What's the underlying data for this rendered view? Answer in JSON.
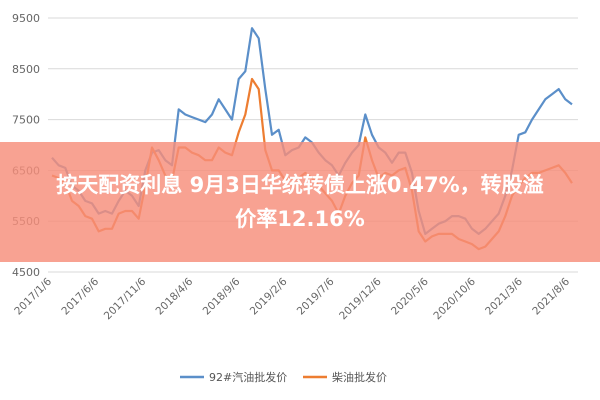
{
  "headline": {
    "line1": "按天配资利息 9月3日华统转债上涨0.47%，转股溢",
    "line2": "价率12.16%"
  },
  "colors": {
    "series_blue": "#5b8fc9",
    "series_orange": "#ed7d31",
    "grid": "#d9d9d9",
    "banner": "#f78e7a"
  },
  "chart_data": {
    "type": "line",
    "title": "",
    "xlabel": "",
    "ylabel": "",
    "ylim": [
      4500,
      9500
    ],
    "yticks": [
      "9500",
      "8500",
      "7500",
      "6500",
      "5500",
      "4500"
    ],
    "ytick_values": [
      9500,
      8500,
      7500,
      6500,
      5500,
      4500
    ],
    "xticks": [
      "2017/1/6",
      "2017/6/6",
      "2017/11/6",
      "2018/4/6",
      "2018/9/6",
      "2019/2/6",
      "2019/7/6",
      "2019/12/6",
      "2020/5/6",
      "2020/10/6",
      "2021/3/6",
      "2021/8/6"
    ],
    "grid": true,
    "legend_position": "bottom",
    "series": [
      {
        "name": "92#汽油批发价",
        "color": "#5b8fc9",
        "values": [
          6750,
          6600,
          6550,
          6200,
          6100,
          5900,
          5850,
          5650,
          5700,
          5650,
          5900,
          6100,
          6000,
          5800,
          6500,
          6850,
          6900,
          6700,
          6600,
          7700,
          7600,
          7550,
          7500,
          7450,
          7600,
          7900,
          7700,
          7500,
          8300,
          8450,
          9300,
          9100,
          8100,
          7200,
          7300,
          6800,
          6900,
          6950,
          7150,
          7050,
          6850,
          6700,
          6600,
          6400,
          6650,
          6850,
          7000,
          7600,
          7200,
          6950,
          6850,
          6650,
          6850,
          6850,
          6450,
          5700,
          5250,
          5350,
          5450,
          5500,
          5600,
          5600,
          5550,
          5350,
          5250,
          5350,
          5500,
          5650,
          6000,
          6500,
          7200,
          7250,
          7500,
          7700,
          7900,
          8000,
          8100,
          7900,
          7800
        ]
      },
      {
        "name": "柴油批发价",
        "color": "#ed7d31",
        "values": [
          6400,
          6350,
          6250,
          5900,
          5800,
          5600,
          5550,
          5300,
          5350,
          5350,
          5650,
          5700,
          5700,
          5550,
          6200,
          6950,
          6700,
          6400,
          6300,
          6950,
          6950,
          6850,
          6800,
          6700,
          6700,
          6950,
          6850,
          6800,
          7250,
          7600,
          8300,
          8100,
          6900,
          6500,
          6500,
          6300,
          6350,
          6350,
          6450,
          6350,
          6200,
          6050,
          5900,
          5650,
          6000,
          6250,
          6400,
          7150,
          6700,
          6350,
          6450,
          6400,
          6500,
          6550,
          6100,
          5300,
          5100,
          5200,
          5250,
          5250,
          5250,
          5150,
          5100,
          5050,
          4950,
          5000,
          5150,
          5300,
          5600,
          6000,
          6200,
          6350,
          6450,
          6450,
          6500,
          6550,
          6600,
          6450,
          6250
        ]
      }
    ]
  }
}
